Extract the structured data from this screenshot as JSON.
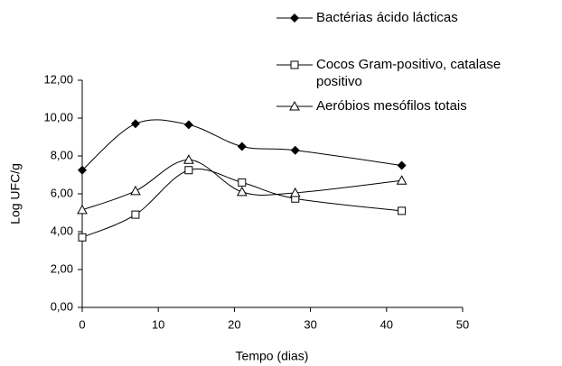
{
  "chart_data": {
    "type": "line",
    "xlabel": "Tempo (dias)",
    "ylabel": "Log UFC/g",
    "x": [
      0,
      7,
      14,
      21,
      28,
      42
    ],
    "series": [
      {
        "name": "Bactérias ácido lácticas",
        "color": "#000000",
        "marker": "diamond",
        "values": [
          7.25,
          9.7,
          9.65,
          8.5,
          8.3,
          7.5
        ]
      },
      {
        "name": "Cocos Gram-positivo, catalase positivo",
        "color": "#000000",
        "marker": "square",
        "values": [
          3.7,
          4.9,
          7.25,
          6.6,
          5.75,
          5.1
        ]
      },
      {
        "name": "Aeróbios mesófilos totais",
        "color": "#000000",
        "marker": "triangle",
        "values": [
          5.15,
          6.15,
          7.8,
          6.1,
          6.05,
          6.7
        ]
      }
    ],
    "xlim": [
      0,
      50
    ],
    "xticks": [
      0,
      10,
      20,
      30,
      40,
      50
    ],
    "ylim": [
      0,
      12
    ],
    "yticks": [
      {
        "value": 0,
        "label": "0,00"
      },
      {
        "value": 2,
        "label": "2,00"
      },
      {
        "value": 4,
        "label": "4,00"
      },
      {
        "value": 6,
        "label": "6,00"
      },
      {
        "value": 8,
        "label": "8,00"
      },
      {
        "value": 10,
        "label": "10,00"
      },
      {
        "value": 12,
        "label": "12,00"
      }
    ],
    "smooth": true,
    "grid": false
  }
}
